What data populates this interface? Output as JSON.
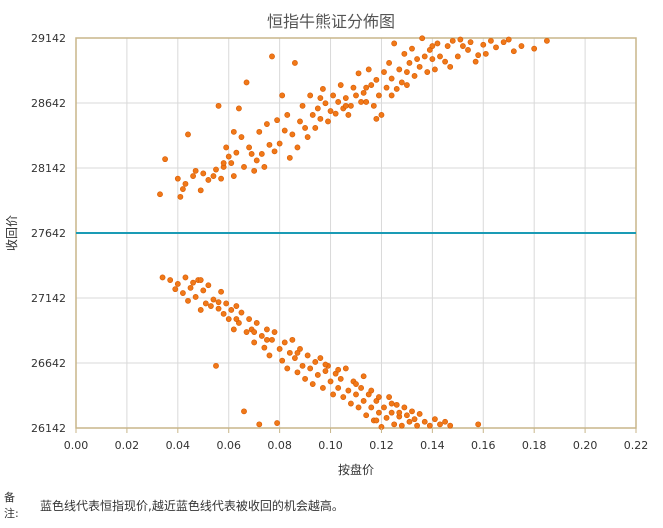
{
  "chart_data": {
    "type": "scatter",
    "title": "恒指牛熊证分佈图",
    "xlabel": "按盘价",
    "ylabel": "收回价",
    "xlim": [
      0,
      0.22
    ],
    "ylim": [
      26142,
      29142
    ],
    "x_ticks": [
      "0.00",
      "0.02",
      "0.04",
      "0.06",
      "0.08",
      "0.10",
      "0.12",
      "0.14",
      "0.16",
      "0.18",
      "0.20",
      "0.22"
    ],
    "y_ticks": [
      "26142",
      "26642",
      "27142",
      "27642",
      "28142",
      "28642",
      "29142"
    ],
    "grid": true,
    "reference_line": {
      "y": 27642,
      "color": "#1a9bb5"
    },
    "colors": {
      "points": "#f07818",
      "point_edge": "#d85a00",
      "plot_border": "#c8b68a",
      "grid": "#d9d9d9"
    },
    "series": [
      {
        "points": [
          [
            0.033,
            27940
          ],
          [
            0.035,
            28210
          ],
          [
            0.04,
            28060
          ],
          [
            0.041,
            27920
          ],
          [
            0.042,
            27980
          ],
          [
            0.043,
            28020
          ],
          [
            0.044,
            28400
          ],
          [
            0.046,
            28080
          ],
          [
            0.047,
            28120
          ],
          [
            0.049,
            27970
          ],
          [
            0.05,
            28100
          ],
          [
            0.052,
            28050
          ],
          [
            0.054,
            28080
          ],
          [
            0.055,
            28130
          ],
          [
            0.056,
            28620
          ],
          [
            0.057,
            28060
          ],
          [
            0.058,
            28150
          ],
          [
            0.059,
            28300
          ],
          [
            0.06,
            28230
          ],
          [
            0.061,
            28180
          ],
          [
            0.062,
            28080
          ],
          [
            0.063,
            28260
          ],
          [
            0.064,
            28600
          ],
          [
            0.065,
            28380
          ],
          [
            0.066,
            28150
          ],
          [
            0.067,
            28800
          ],
          [
            0.068,
            28300
          ],
          [
            0.07,
            28120
          ],
          [
            0.071,
            28200
          ],
          [
            0.072,
            28420
          ],
          [
            0.073,
            28250
          ],
          [
            0.074,
            28150
          ],
          [
            0.075,
            28480
          ],
          [
            0.076,
            28320
          ],
          [
            0.077,
            29000
          ],
          [
            0.078,
            28270
          ],
          [
            0.079,
            28510
          ],
          [
            0.08,
            28330
          ],
          [
            0.081,
            28700
          ],
          [
            0.082,
            28430
          ],
          [
            0.083,
            28550
          ],
          [
            0.085,
            28400
          ],
          [
            0.086,
            28950
          ],
          [
            0.087,
            28300
          ],
          [
            0.088,
            28500
          ],
          [
            0.089,
            28620
          ],
          [
            0.09,
            28450
          ],
          [
            0.091,
            28380
          ],
          [
            0.092,
            28700
          ],
          [
            0.093,
            28550
          ],
          [
            0.094,
            28450
          ],
          [
            0.095,
            28600
          ],
          [
            0.096,
            28520
          ],
          [
            0.097,
            28750
          ],
          [
            0.098,
            28640
          ],
          [
            0.099,
            28500
          ],
          [
            0.1,
            28580
          ],
          [
            0.101,
            28700
          ],
          [
            0.102,
            28560
          ],
          [
            0.103,
            28650
          ],
          [
            0.104,
            28780
          ],
          [
            0.105,
            28600
          ],
          [
            0.106,
            28680
          ],
          [
            0.107,
            28550
          ],
          [
            0.108,
            28620
          ],
          [
            0.109,
            28760
          ],
          [
            0.11,
            28700
          ],
          [
            0.111,
            28870
          ],
          [
            0.112,
            28650
          ],
          [
            0.113,
            28720
          ],
          [
            0.114,
            28650
          ],
          [
            0.115,
            28900
          ],
          [
            0.116,
            28780
          ],
          [
            0.117,
            28620
          ],
          [
            0.118,
            28820
          ],
          [
            0.119,
            28700
          ],
          [
            0.12,
            28550
          ],
          [
            0.121,
            28880
          ],
          [
            0.122,
            28760
          ],
          [
            0.123,
            28950
          ],
          [
            0.124,
            28830
          ],
          [
            0.125,
            29100
          ],
          [
            0.126,
            28750
          ],
          [
            0.127,
            28900
          ],
          [
            0.128,
            28800
          ],
          [
            0.129,
            29020
          ],
          [
            0.13,
            28880
          ],
          [
            0.131,
            28950
          ],
          [
            0.132,
            29060
          ],
          [
            0.133,
            28850
          ],
          [
            0.134,
            28980
          ],
          [
            0.135,
            28920
          ],
          [
            0.136,
            29140
          ],
          [
            0.137,
            29000
          ],
          [
            0.138,
            28880
          ],
          [
            0.139,
            29050
          ],
          [
            0.14,
            28980
          ],
          [
            0.141,
            28900
          ],
          [
            0.142,
            29100
          ],
          [
            0.143,
            29000
          ],
          [
            0.145,
            28960
          ],
          [
            0.146,
            29080
          ],
          [
            0.147,
            28920
          ],
          [
            0.148,
            29120
          ],
          [
            0.15,
            29000
          ],
          [
            0.152,
            29080
          ],
          [
            0.154,
            29050
          ],
          [
            0.155,
            29110
          ],
          [
            0.158,
            29010
          ],
          [
            0.16,
            29090
          ],
          [
            0.163,
            29120
          ],
          [
            0.165,
            29070
          ],
          [
            0.168,
            29110
          ],
          [
            0.17,
            29130
          ],
          [
            0.172,
            29040
          ],
          [
            0.175,
            29080
          ],
          [
            0.18,
            29060
          ],
          [
            0.185,
            29120
          ],
          [
            0.058,
            28180
          ],
          [
            0.062,
            28420
          ],
          [
            0.069,
            28250
          ],
          [
            0.084,
            28220
          ],
          [
            0.096,
            28680
          ],
          [
            0.106,
            28620
          ],
          [
            0.114,
            28760
          ],
          [
            0.118,
            28520
          ],
          [
            0.124,
            28700
          ],
          [
            0.13,
            28780
          ],
          [
            0.14,
            29080
          ],
          [
            0.151,
            29130
          ],
          [
            0.161,
            29020
          ],
          [
            0.157,
            28960
          ]
        ]
      },
      {
        "points": [
          [
            0.034,
            27300
          ],
          [
            0.037,
            27280
          ],
          [
            0.039,
            27210
          ],
          [
            0.04,
            27250
          ],
          [
            0.042,
            27180
          ],
          [
            0.043,
            27300
          ],
          [
            0.044,
            27120
          ],
          [
            0.045,
            27220
          ],
          [
            0.046,
            27260
          ],
          [
            0.047,
            27150
          ],
          [
            0.048,
            27280
          ],
          [
            0.049,
            27050
          ],
          [
            0.05,
            27200
          ],
          [
            0.051,
            27100
          ],
          [
            0.052,
            27240
          ],
          [
            0.053,
            27080
          ],
          [
            0.054,
            27130
          ],
          [
            0.055,
            26620
          ],
          [
            0.056,
            27060
          ],
          [
            0.057,
            27190
          ],
          [
            0.058,
            27020
          ],
          [
            0.059,
            27100
          ],
          [
            0.06,
            26980
          ],
          [
            0.061,
            27050
          ],
          [
            0.062,
            26900
          ],
          [
            0.063,
            27080
          ],
          [
            0.064,
            26950
          ],
          [
            0.065,
            27030
          ],
          [
            0.066,
            26270
          ],
          [
            0.067,
            26880
          ],
          [
            0.068,
            26980
          ],
          [
            0.069,
            26900
          ],
          [
            0.07,
            26800
          ],
          [
            0.071,
            26950
          ],
          [
            0.072,
            26170
          ],
          [
            0.073,
            26850
          ],
          [
            0.074,
            26760
          ],
          [
            0.075,
            26900
          ],
          [
            0.076,
            26700
          ],
          [
            0.077,
            26820
          ],
          [
            0.078,
            26880
          ],
          [
            0.079,
            26180
          ],
          [
            0.08,
            26750
          ],
          [
            0.081,
            26660
          ],
          [
            0.082,
            26800
          ],
          [
            0.083,
            26600
          ],
          [
            0.084,
            26720
          ],
          [
            0.085,
            26820
          ],
          [
            0.086,
            26680
          ],
          [
            0.087,
            26570
          ],
          [
            0.088,
            26750
          ],
          [
            0.089,
            26620
          ],
          [
            0.09,
            26520
          ],
          [
            0.091,
            26700
          ],
          [
            0.092,
            26600
          ],
          [
            0.093,
            26480
          ],
          [
            0.094,
            26650
          ],
          [
            0.095,
            26550
          ],
          [
            0.096,
            26680
          ],
          [
            0.097,
            26450
          ],
          [
            0.098,
            26580
          ],
          [
            0.099,
            26620
          ],
          [
            0.1,
            26500
          ],
          [
            0.101,
            26400
          ],
          [
            0.102,
            26560
          ],
          [
            0.103,
            26450
          ],
          [
            0.104,
            26520
          ],
          [
            0.105,
            26380
          ],
          [
            0.106,
            26600
          ],
          [
            0.107,
            26430
          ],
          [
            0.108,
            26330
          ],
          [
            0.109,
            26500
          ],
          [
            0.11,
            26400
          ],
          [
            0.111,
            26300
          ],
          [
            0.112,
            26450
          ],
          [
            0.113,
            26350
          ],
          [
            0.114,
            26240
          ],
          [
            0.115,
            26400
          ],
          [
            0.116,
            26300
          ],
          [
            0.117,
            26200
          ],
          [
            0.118,
            26350
          ],
          [
            0.119,
            26260
          ],
          [
            0.12,
            26150
          ],
          [
            0.121,
            26300
          ],
          [
            0.122,
            26220
          ],
          [
            0.123,
            26380
          ],
          [
            0.124,
            26260
          ],
          [
            0.125,
            26170
          ],
          [
            0.126,
            26320
          ],
          [
            0.127,
            26230
          ],
          [
            0.128,
            26160
          ],
          [
            0.129,
            26300
          ],
          [
            0.13,
            26240
          ],
          [
            0.131,
            26190
          ],
          [
            0.132,
            26270
          ],
          [
            0.133,
            26210
          ],
          [
            0.134,
            26160
          ],
          [
            0.135,
            26250
          ],
          [
            0.137,
            26190
          ],
          [
            0.139,
            26160
          ],
          [
            0.141,
            26210
          ],
          [
            0.143,
            26170
          ],
          [
            0.145,
            26190
          ],
          [
            0.147,
            26160
          ],
          [
            0.158,
            26170
          ],
          [
            0.049,
            27280
          ],
          [
            0.056,
            27110
          ],
          [
            0.063,
            26980
          ],
          [
            0.07,
            26880
          ],
          [
            0.075,
            26820
          ],
          [
            0.087,
            26720
          ],
          [
            0.098,
            26630
          ],
          [
            0.103,
            26590
          ],
          [
            0.11,
            26480
          ],
          [
            0.113,
            26540
          ],
          [
            0.116,
            26430
          ],
          [
            0.119,
            26380
          ],
          [
            0.124,
            26330
          ],
          [
            0.118,
            26200
          ],
          [
            0.127,
            26260
          ]
        ]
      }
    ]
  },
  "note": {
    "label": "备注:",
    "text": "蓝色线代表恒指现价,越近蓝色线代表被收回的机会越高。"
  }
}
